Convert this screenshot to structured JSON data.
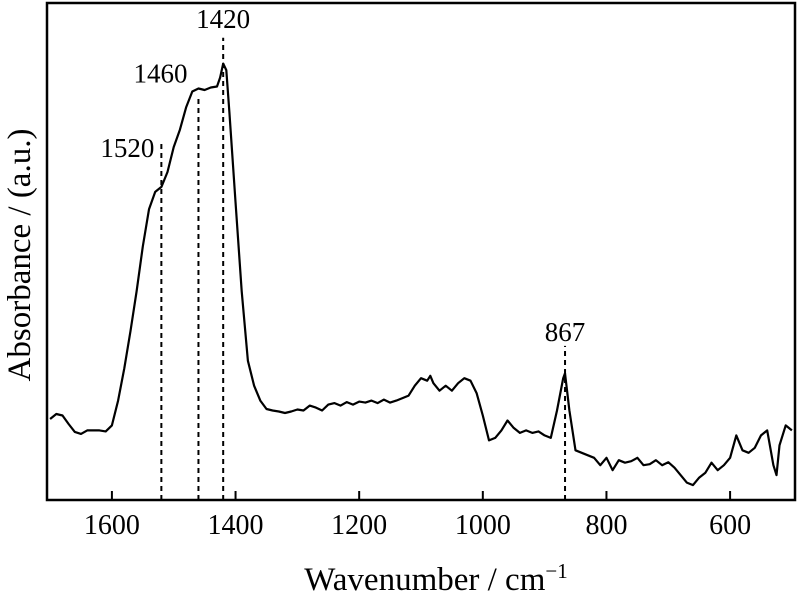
{
  "chart_data": {
    "type": "line",
    "xlabel": "Wavenumber / cm",
    "xlabel_sup": "−1",
    "ylabel": "Absorbance / (a.u.)",
    "xlim": [
      1705,
      495
    ],
    "ylim": [
      0,
      1
    ],
    "x_reversed": true,
    "y_ticks_shown": false,
    "grid": false,
    "x_ticks": [
      1600,
      1400,
      1200,
      1000,
      800,
      600
    ],
    "x_tick_labels": [
      "1600",
      "1400",
      "1200",
      "1000",
      "800",
      "600"
    ],
    "peaks": [
      {
        "x": 1520,
        "label": "1520",
        "label_y": 0.69,
        "line_top": 0.72
      },
      {
        "x": 1460,
        "label": "1460",
        "label_y": 0.84,
        "line_top": 0.81
      },
      {
        "x": 1420,
        "label": "1420",
        "label_y": 0.95,
        "line_top": 0.93
      },
      {
        "x": 867,
        "label": "867",
        "label_y": 0.32,
        "line_top": 0.31
      }
    ],
    "series": [
      {
        "points": [
          [
            1700,
            0.163
          ],
          [
            1690,
            0.173
          ],
          [
            1680,
            0.17
          ],
          [
            1670,
            0.153
          ],
          [
            1660,
            0.137
          ],
          [
            1650,
            0.133
          ],
          [
            1640,
            0.14
          ],
          [
            1630,
            0.14
          ],
          [
            1620,
            0.14
          ],
          [
            1610,
            0.138
          ],
          [
            1600,
            0.15
          ],
          [
            1590,
            0.2
          ],
          [
            1580,
            0.265
          ],
          [
            1570,
            0.34
          ],
          [
            1560,
            0.42
          ],
          [
            1550,
            0.51
          ],
          [
            1540,
            0.585
          ],
          [
            1530,
            0.62
          ],
          [
            1520,
            0.63
          ],
          [
            1510,
            0.66
          ],
          [
            1500,
            0.71
          ],
          [
            1490,
            0.745
          ],
          [
            1480,
            0.79
          ],
          [
            1470,
            0.822
          ],
          [
            1460,
            0.828
          ],
          [
            1450,
            0.825
          ],
          [
            1440,
            0.83
          ],
          [
            1430,
            0.832
          ],
          [
            1425,
            0.85
          ],
          [
            1420,
            0.878
          ],
          [
            1415,
            0.865
          ],
          [
            1410,
            0.78
          ],
          [
            1400,
            0.6
          ],
          [
            1390,
            0.42
          ],
          [
            1380,
            0.28
          ],
          [
            1370,
            0.23
          ],
          [
            1360,
            0.2
          ],
          [
            1350,
            0.183
          ],
          [
            1340,
            0.18
          ],
          [
            1330,
            0.178
          ],
          [
            1320,
            0.175
          ],
          [
            1310,
            0.178
          ],
          [
            1300,
            0.182
          ],
          [
            1290,
            0.18
          ],
          [
            1280,
            0.19
          ],
          [
            1270,
            0.186
          ],
          [
            1260,
            0.18
          ],
          [
            1250,
            0.192
          ],
          [
            1240,
            0.195
          ],
          [
            1230,
            0.19
          ],
          [
            1220,
            0.197
          ],
          [
            1210,
            0.192
          ],
          [
            1200,
            0.198
          ],
          [
            1190,
            0.196
          ],
          [
            1180,
            0.2
          ],
          [
            1170,
            0.195
          ],
          [
            1160,
            0.202
          ],
          [
            1150,
            0.196
          ],
          [
            1140,
            0.2
          ],
          [
            1130,
            0.205
          ],
          [
            1120,
            0.21
          ],
          [
            1110,
            0.23
          ],
          [
            1100,
            0.245
          ],
          [
            1090,
            0.24
          ],
          [
            1085,
            0.25
          ],
          [
            1080,
            0.235
          ],
          [
            1070,
            0.22
          ],
          [
            1060,
            0.23
          ],
          [
            1050,
            0.22
          ],
          [
            1040,
            0.235
          ],
          [
            1030,
            0.245
          ],
          [
            1020,
            0.24
          ],
          [
            1010,
            0.215
          ],
          [
            1000,
            0.17
          ],
          [
            990,
            0.12
          ],
          [
            980,
            0.125
          ],
          [
            970,
            0.14
          ],
          [
            960,
            0.16
          ],
          [
            950,
            0.145
          ],
          [
            940,
            0.135
          ],
          [
            930,
            0.14
          ],
          [
            920,
            0.135
          ],
          [
            910,
            0.138
          ],
          [
            900,
            0.13
          ],
          [
            890,
            0.125
          ],
          [
            880,
            0.18
          ],
          [
            870,
            0.245
          ],
          [
            867,
            0.255
          ],
          [
            860,
            0.18
          ],
          [
            850,
            0.1
          ],
          [
            840,
            0.095
          ],
          [
            830,
            0.09
          ],
          [
            820,
            0.085
          ],
          [
            810,
            0.07
          ],
          [
            800,
            0.085
          ],
          [
            790,
            0.06
          ],
          [
            780,
            0.08
          ],
          [
            770,
            0.075
          ],
          [
            760,
            0.078
          ],
          [
            750,
            0.085
          ],
          [
            740,
            0.07
          ],
          [
            730,
            0.072
          ],
          [
            720,
            0.08
          ],
          [
            710,
            0.07
          ],
          [
            700,
            0.076
          ],
          [
            690,
            0.065
          ],
          [
            680,
            0.05
          ],
          [
            670,
            0.035
          ],
          [
            660,
            0.03
          ],
          [
            650,
            0.045
          ],
          [
            640,
            0.055
          ],
          [
            630,
            0.075
          ],
          [
            620,
            0.06
          ],
          [
            610,
            0.07
          ],
          [
            600,
            0.085
          ],
          [
            590,
            0.13
          ],
          [
            580,
            0.1
          ],
          [
            570,
            0.095
          ],
          [
            560,
            0.105
          ],
          [
            550,
            0.13
          ],
          [
            540,
            0.14
          ],
          [
            530,
            0.07
          ],
          [
            525,
            0.05
          ],
          [
            520,
            0.11
          ],
          [
            510,
            0.15
          ],
          [
            500,
            0.14
          ]
        ]
      }
    ]
  }
}
